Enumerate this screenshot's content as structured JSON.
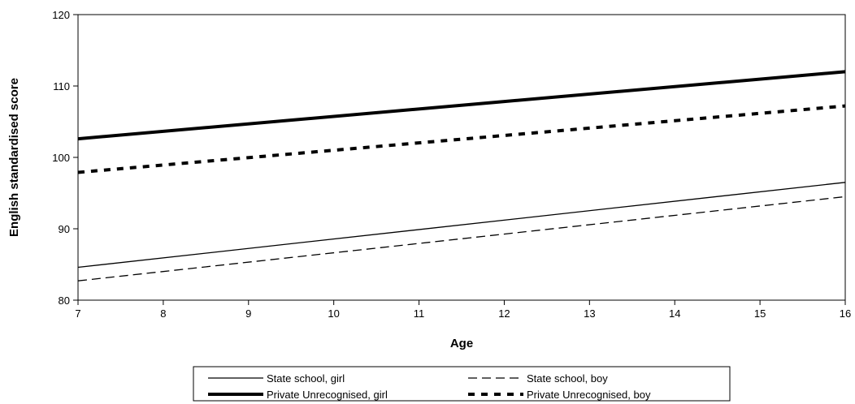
{
  "chart_data": {
    "type": "line",
    "title": "",
    "xlabel": "Age",
    "ylabel": "English standardised score",
    "xlim": [
      7,
      16
    ],
    "ylim": [
      80,
      120
    ],
    "x_ticks": [
      "7",
      "8",
      "9",
      "10",
      "11",
      "12",
      "13",
      "14",
      "15",
      "16"
    ],
    "y_ticks": [
      "80",
      "90",
      "100",
      "110",
      "120"
    ],
    "grid": false,
    "legend_position": "bottom",
    "series": [
      {
        "name": "State school, girl",
        "style": "thin-solid",
        "color": "#000000",
        "x": [
          7,
          16
        ],
        "y": [
          84.6,
          96.5
        ]
      },
      {
        "name": "State school, boy",
        "style": "thin-dashed",
        "color": "#000000",
        "x": [
          7,
          16
        ],
        "y": [
          82.7,
          94.5
        ]
      },
      {
        "name": "Private Unrecognised, girl",
        "style": "thick-solid",
        "color": "#000000",
        "x": [
          7,
          16
        ],
        "y": [
          102.6,
          112.0
        ]
      },
      {
        "name": "Private Unrecognised, boy",
        "style": "thick-dashed",
        "color": "#000000",
        "x": [
          7,
          16
        ],
        "y": [
          97.9,
          107.2
        ]
      }
    ]
  }
}
